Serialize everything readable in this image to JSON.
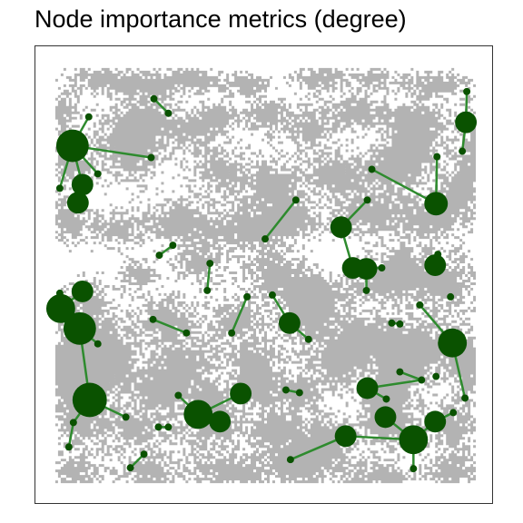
{
  "title": "Node importance metrics (degree)",
  "colors": {
    "habitat": "#b3b3b3",
    "node": "#0a5200",
    "edge": "#2e8b2e",
    "frame": "#333333",
    "background": "#ffffff"
  },
  "metric": "degree"
}
